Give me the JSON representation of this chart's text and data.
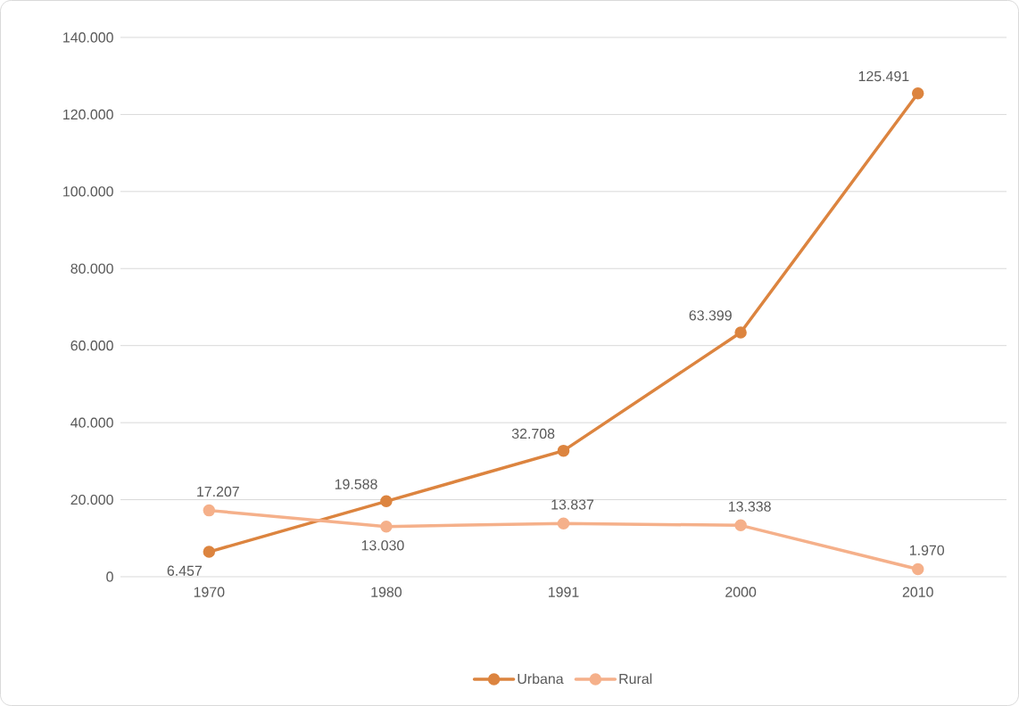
{
  "chart_data": {
    "type": "line",
    "categories": [
      "1970",
      "1980",
      "1991",
      "2000",
      "2010"
    ],
    "series": [
      {
        "name": "Urbana",
        "color": "#dc843f",
        "values": [
          6457,
          19588,
          32708,
          63399,
          125491
        ],
        "value_labels": [
          "6.457",
          "19.588",
          "32.708",
          "63.399",
          "125.491"
        ]
      },
      {
        "name": "Rural",
        "color": "#f5b08a",
        "values": [
          17207,
          13030,
          13837,
          13338,
          1970
        ],
        "value_labels": [
          "17.207",
          "13.030",
          "13.837",
          "13.338",
          "1.970"
        ]
      }
    ],
    "ylim": [
      0,
      140000
    ],
    "yticks": [
      {
        "value": 0,
        "label": "0"
      },
      {
        "value": 20000,
        "label": "20.000"
      },
      {
        "value": 40000,
        "label": "40.000"
      },
      {
        "value": 60000,
        "label": "60.000"
      },
      {
        "value": 80000,
        "label": "80.000"
      },
      {
        "value": 100000,
        "label": "100.000"
      },
      {
        "value": 120000,
        "label": "120.000"
      },
      {
        "value": 140000,
        "label": "140.000"
      }
    ],
    "grid": "y",
    "legend": "bottom",
    "marker": "circle",
    "line_style": "solid"
  }
}
